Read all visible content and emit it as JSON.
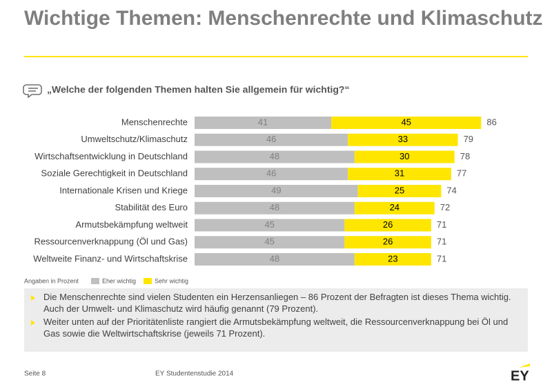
{
  "chart_data": {
    "type": "stacked-bar",
    "title": "Wichtige Themen: Menschenrechte und Klimaschutz",
    "subtitle": "„Welche der folgenden Themen halten Sie allgemein für wichtig?“",
    "note": "Angaben in Prozent",
    "categories": [
      "Menschenrechte",
      "Umweltschutz/Klimaschutz",
      "Wirtschaftsentwicklung in Deutschland",
      "Soziale Gerechtigkeit in Deutschland",
      "Internationale Krisen und Kriege",
      "Stabilität des Euro",
      "Armutsbekämpfung weltweit",
      "Ressourcenverknappung (Öl und Gas)",
      "Weltweite Finanz- und Wirtschaftskrise"
    ],
    "series": [
      {
        "name": "Eher wichtig",
        "color": "#bfbfbf",
        "values": [
          41,
          46,
          48,
          46,
          49,
          48,
          45,
          45,
          48
        ]
      },
      {
        "name": "Sehr wichtig",
        "color": "#ffe600",
        "values": [
          45,
          33,
          30,
          31,
          25,
          24,
          26,
          26,
          23
        ]
      }
    ],
    "totals": [
      86,
      79,
      78,
      77,
      74,
      72,
      71,
      71,
      71
    ]
  },
  "bullets": [
    "Die Menschenrechte sind vielen Studenten ein Herzensanliegen – 86 Prozent der Befragten ist dieses Thema wichtig. Auch der Umwelt- und Klimaschutz wird häufig genannt (79 Prozent).",
    "Weiter unten auf der Prioritätenliste rangiert die Armutsbekämpfung weltweit, die Ressourcenverknappung bei Öl und Gas sowie die Weltwirtschaftskrise (jeweils 71 Prozent)."
  ],
  "footer": {
    "page": "Seite 8",
    "source": "EY Studentenstudie 2014",
    "logo": "EY"
  }
}
